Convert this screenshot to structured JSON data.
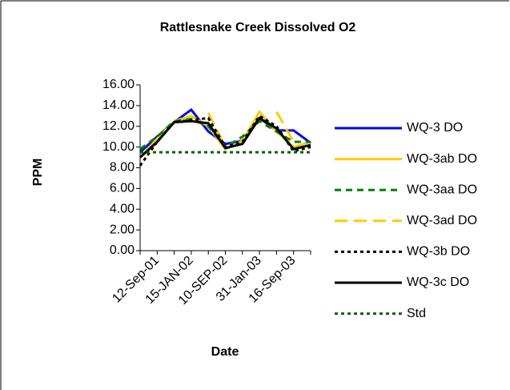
{
  "chart_data": {
    "type": "line",
    "title": "Rattlesnake Creek Dissolved O2",
    "y_label": "PPM",
    "x_label": "Date",
    "categories": [
      null,
      "12-Sep-01",
      null,
      "15-JAN-02",
      null,
      "10-SEP-02",
      null,
      "31-Jan-03",
      null,
      "16-Sep-03",
      null
    ],
    "ylim": [
      0,
      16
    ],
    "yticks": [
      {
        "value": 0,
        "label": "0.00"
      },
      {
        "value": 2,
        "label": "2.00"
      },
      {
        "value": 4,
        "label": "4.00"
      },
      {
        "value": 6,
        "label": "6.00"
      },
      {
        "value": 8,
        "label": "8.00"
      },
      {
        "value": 10,
        "label": "10.00"
      },
      {
        "value": 12,
        "label": "12.00"
      },
      {
        "value": 14,
        "label": "14.00"
      },
      {
        "value": 16,
        "label": "16.00"
      }
    ],
    "series": [
      {
        "name": "WQ-3 DO",
        "color": "#0000ff",
        "dash": "solid",
        "values": [
          9.5,
          11.0,
          12.4,
          13.6,
          11.5,
          10.3,
          10.6,
          12.8,
          11.6,
          11.6,
          10.4
        ]
      },
      {
        "name": "WQ-3ab DO",
        "color": "#ffcc00",
        "dash": "solid",
        "values": [
          9.0,
          10.8,
          12.5,
          13.0,
          12.0,
          9.8,
          10.6,
          13.4,
          11.5,
          10.0,
          10.5
        ]
      },
      {
        "name": "WQ-3aa DO",
        "color": "#008000",
        "dash": "dash",
        "values": [
          9.8,
          11.0,
          12.5,
          12.7,
          12.0,
          10.0,
          11.0,
          12.5,
          11.5,
          10.5,
          10.5
        ]
      },
      {
        "name": "WQ-3ad DO",
        "color": "#ffcc00",
        "dash": "longdash",
        "values": [
          null,
          null,
          null,
          null,
          13.3,
          10.0,
          null,
          null,
          13.4,
          10.5,
          null
        ]
      },
      {
        "name": "WQ-3b DO",
        "color": "#000000",
        "dash": "dot",
        "values": [
          8.2,
          10.5,
          12.4,
          12.6,
          12.8,
          10.0,
          10.5,
          13.0,
          12.0,
          9.6,
          10.0
        ]
      },
      {
        "name": "WQ-3c DO",
        "color": "#000000",
        "dash": "solid",
        "values": [
          9.0,
          10.5,
          12.4,
          12.5,
          12.3,
          9.9,
          10.3,
          12.8,
          11.8,
          9.8,
          10.2
        ]
      },
      {
        "name": "Std",
        "color": "#006400",
        "dash": "dot",
        "values": [
          9.5,
          9.5,
          9.5,
          9.5,
          9.5,
          9.5,
          9.5,
          9.5,
          9.5,
          9.5,
          9.5
        ]
      }
    ],
    "legend": "right"
  }
}
